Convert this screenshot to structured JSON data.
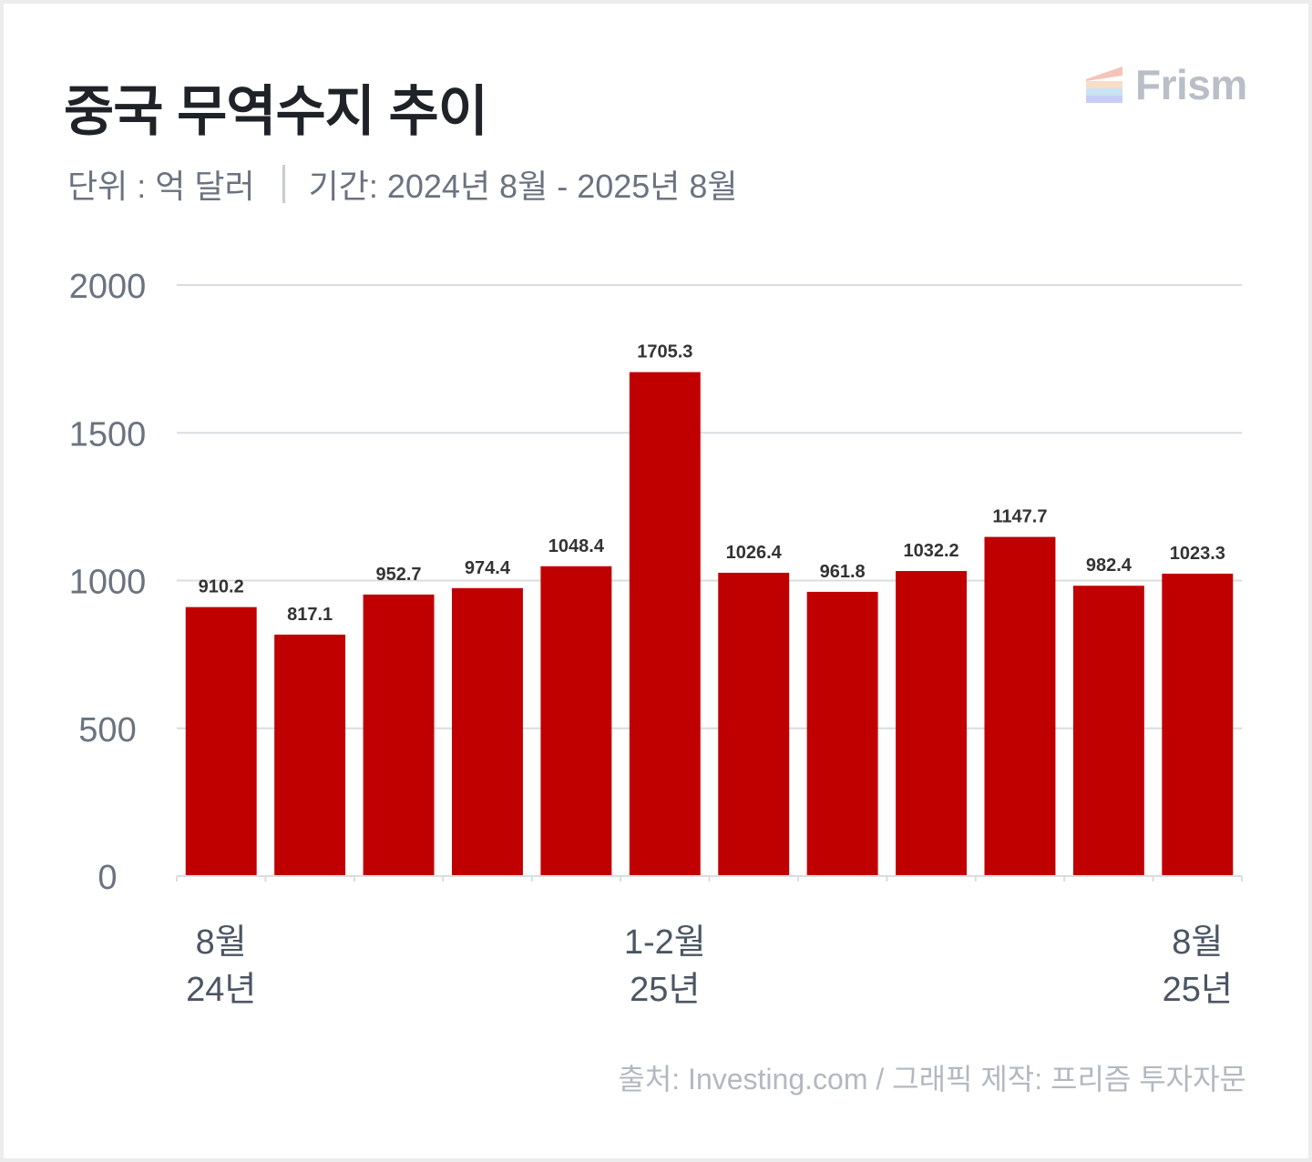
{
  "title": "중국 무역수지 추이",
  "subtitle": {
    "unit": "단위 : 억 달러",
    "period": "기간: 2024년 8월 - 2025년 8월"
  },
  "logo": {
    "text": "Frism",
    "icon": "frism-logo-icon"
  },
  "source": "출처: Investing.com / 그래픽 제작: 프리즘 투자자문",
  "colors": {
    "bar": "#c00000",
    "grid": "#d9dce1",
    "axis_text": "#6b7280"
  },
  "chart_data": {
    "type": "bar",
    "categories": [
      "8월 24년",
      "",
      "",
      "",
      "",
      "1-2월 25년",
      "",
      "",
      "",
      "",
      "",
      "8월 25년"
    ],
    "category_labels": [
      {
        "index": 0,
        "line1": "8월",
        "line2": "24년"
      },
      {
        "index": 5,
        "line1": "1-2월",
        "line2": "25년"
      },
      {
        "index": 11,
        "line1": "8월",
        "line2": "25년"
      }
    ],
    "values": [
      910.2,
      817.1,
      952.7,
      974.4,
      1048.4,
      1705.3,
      1026.4,
      961.8,
      1032.2,
      1147.7,
      982.4,
      1023.3
    ],
    "data_labels": [
      "910.2",
      "817.1",
      "952.7",
      "974.4",
      "1048.4",
      "1705.3",
      "1026.4",
      "961.8",
      "1032.2",
      "1147.7",
      "982.4",
      "1023.3"
    ],
    "ylim": [
      0,
      2000
    ],
    "yticks": [
      "0",
      "500",
      "1000",
      "1500",
      "2000"
    ],
    "grid": true,
    "legend": "none",
    "xlabel": "",
    "ylabel": ""
  }
}
